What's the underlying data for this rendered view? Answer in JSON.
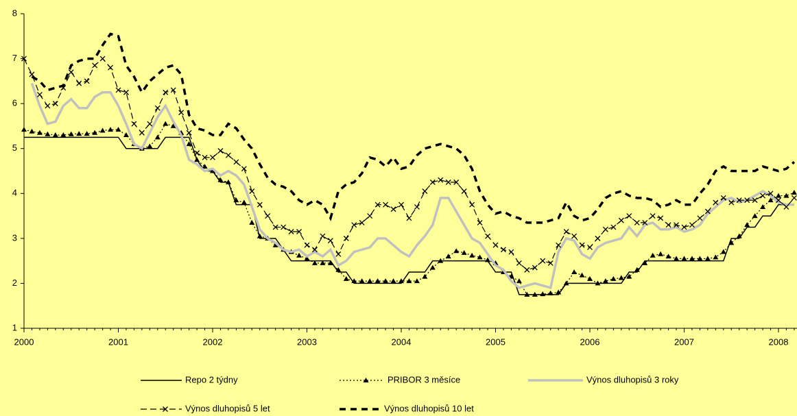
{
  "chart_data": {
    "type": "line",
    "categories": [
      "2000",
      null,
      null,
      null,
      null,
      null,
      null,
      null,
      null,
      null,
      null,
      null,
      "2001",
      null,
      null,
      null,
      null,
      null,
      null,
      null,
      null,
      null,
      null,
      null,
      "2002",
      null,
      null,
      null,
      null,
      null,
      null,
      null,
      null,
      null,
      null,
      null,
      "2003",
      null,
      null,
      null,
      null,
      null,
      null,
      null,
      null,
      null,
      null,
      null,
      "2004",
      null,
      null,
      null,
      null,
      null,
      null,
      null,
      null,
      null,
      null,
      null,
      "2005",
      null,
      null,
      null,
      null,
      null,
      null,
      null,
      null,
      null,
      null,
      null,
      "2006",
      null,
      null,
      null,
      null,
      null,
      null,
      null,
      null,
      null,
      null,
      null,
      "2007",
      null,
      null,
      null,
      null,
      null,
      null,
      null,
      null,
      null,
      null,
      null,
      "2008",
      null,
      null
    ],
    "ylim": [
      1,
      8
    ],
    "yticks": [
      1,
      2,
      3,
      4,
      5,
      6,
      7,
      8
    ],
    "series": [
      {
        "name": "Repo 2 týdny",
        "color": "#000000",
        "values": [
          5.25,
          5.25,
          5.25,
          5.25,
          5.25,
          5.25,
          5.25,
          5.25,
          5.25,
          5.25,
          5.25,
          5.25,
          5.25,
          5.0,
          5.0,
          5.0,
          5.0,
          5.0,
          5.25,
          5.25,
          5.25,
          5.25,
          4.75,
          4.5,
          4.5,
          4.25,
          4.25,
          3.75,
          3.75,
          3.75,
          3.0,
          3.0,
          3.0,
          2.75,
          2.5,
          2.5,
          2.5,
          2.5,
          2.5,
          2.5,
          2.25,
          2.25,
          2.0,
          2.0,
          2.0,
          2.0,
          2.0,
          2.0,
          2.0,
          2.25,
          2.25,
          2.25,
          2.5,
          2.5,
          2.5,
          2.5,
          2.5,
          2.5,
          2.5,
          2.5,
          2.25,
          2.25,
          2.25,
          1.75,
          1.75,
          1.75,
          1.75,
          1.75,
          1.75,
          2.0,
          2.0,
          2.0,
          2.0,
          2.0,
          2.0,
          2.0,
          2.0,
          2.25,
          2.25,
          2.5,
          2.5,
          2.5,
          2.5,
          2.5,
          2.5,
          2.5,
          2.5,
          2.5,
          2.5,
          2.5,
          3.0,
          3.0,
          3.25,
          3.25,
          3.5,
          3.5,
          3.75,
          3.75,
          3.75
        ]
      },
      {
        "name": "PRIBOR 3 měsíce",
        "color": "#000000",
        "values": [
          5.42,
          5.38,
          5.35,
          5.32,
          5.3,
          5.3,
          5.32,
          5.33,
          5.33,
          5.35,
          5.4,
          5.42,
          5.42,
          5.3,
          5.1,
          5.0,
          5.05,
          5.25,
          5.55,
          5.5,
          5.35,
          5.1,
          4.75,
          4.6,
          4.5,
          4.3,
          4.25,
          3.85,
          3.8,
          3.35,
          3.05,
          3.0,
          2.85,
          2.75,
          2.7,
          2.62,
          2.55,
          2.45,
          2.45,
          2.45,
          2.3,
          2.1,
          2.05,
          2.05,
          2.05,
          2.05,
          2.05,
          2.05,
          2.05,
          2.05,
          2.05,
          2.15,
          2.35,
          2.5,
          2.6,
          2.72,
          2.68,
          2.62,
          2.58,
          2.52,
          2.45,
          2.25,
          2.15,
          2.05,
          1.75,
          1.75,
          1.76,
          1.78,
          1.8,
          2.0,
          2.25,
          2.18,
          2.1,
          2.0,
          2.05,
          2.1,
          2.12,
          2.15,
          2.3,
          2.45,
          2.62,
          2.65,
          2.6,
          2.55,
          2.55,
          2.55,
          2.55,
          2.55,
          2.58,
          2.7,
          2.9,
          3.05,
          3.3,
          3.5,
          3.7,
          3.85,
          3.95,
          3.95,
          4.02
        ]
      },
      {
        "name": "Výnos dluhopisů 3 roky",
        "color": "#c0c0c0",
        "values": [
          null,
          6.45,
          5.95,
          5.55,
          5.6,
          5.95,
          6.1,
          5.9,
          5.9,
          6.15,
          6.25,
          6.25,
          5.95,
          5.55,
          5.1,
          5.0,
          5.35,
          5.7,
          5.95,
          5.6,
          5.3,
          4.75,
          4.65,
          4.5,
          4.55,
          4.4,
          4.5,
          4.4,
          4.2,
          3.7,
          3.2,
          3.0,
          2.9,
          2.75,
          2.7,
          2.75,
          2.6,
          2.7,
          2.6,
          2.75,
          2.4,
          2.5,
          2.7,
          2.75,
          2.8,
          3.0,
          3.0,
          2.85,
          2.7,
          2.6,
          2.85,
          3.05,
          3.3,
          3.9,
          3.9,
          3.6,
          3.3,
          3.0,
          2.9,
          2.65,
          2.4,
          2.3,
          2.05,
          1.9,
          1.95,
          2.0,
          1.95,
          1.9,
          2.7,
          3.0,
          2.95,
          2.65,
          2.55,
          2.8,
          2.9,
          2.95,
          3.0,
          3.25,
          3.05,
          3.3,
          3.35,
          3.2,
          3.2,
          3.25,
          3.15,
          3.2,
          3.3,
          3.55,
          3.7,
          3.85,
          3.9,
          3.8,
          3.85,
          3.95,
          4.05,
          3.95,
          3.8,
          3.75,
          3.75
        ]
      },
      {
        "name": "Výnos dluhopisů 5 let",
        "color": "#000000",
        "values": [
          7.0,
          6.65,
          6.2,
          5.95,
          6.0,
          6.35,
          6.7,
          6.45,
          6.5,
          6.85,
          7.0,
          6.8,
          6.3,
          6.25,
          5.55,
          5.35,
          5.55,
          5.9,
          6.25,
          6.3,
          5.8,
          5.35,
          4.9,
          4.8,
          4.8,
          4.95,
          4.85,
          4.7,
          4.55,
          4.05,
          3.75,
          3.5,
          3.25,
          3.25,
          3.15,
          3.15,
          2.85,
          2.75,
          3.05,
          2.95,
          2.65,
          3.0,
          3.3,
          3.35,
          3.5,
          3.75,
          3.75,
          3.65,
          3.75,
          3.45,
          3.7,
          4.05,
          4.25,
          4.3,
          4.25,
          4.25,
          4.05,
          3.75,
          3.35,
          3.05,
          2.85,
          2.75,
          2.7,
          2.45,
          2.3,
          2.35,
          2.5,
          2.45,
          2.85,
          3.15,
          3.05,
          2.85,
          2.8,
          3.0,
          3.2,
          3.25,
          3.4,
          3.5,
          3.35,
          3.35,
          3.5,
          3.45,
          3.3,
          3.3,
          3.25,
          3.3,
          3.45,
          3.6,
          3.8,
          3.9,
          3.8,
          3.85,
          3.85,
          3.85,
          3.95,
          4.0,
          3.85,
          3.7,
          3.9
        ]
      },
      {
        "name": "Výnos dluhopisů 10 let",
        "color": "#000000",
        "values": [
          null,
          6.6,
          6.5,
          6.3,
          6.35,
          6.4,
          6.85,
          6.95,
          7.0,
          7.0,
          7.3,
          7.55,
          7.5,
          6.85,
          6.6,
          6.25,
          6.5,
          6.65,
          6.8,
          6.85,
          6.65,
          5.75,
          5.45,
          5.4,
          5.3,
          5.3,
          5.55,
          5.45,
          5.2,
          5.0,
          4.65,
          4.35,
          4.2,
          4.15,
          4.05,
          3.85,
          3.75,
          3.85,
          3.75,
          3.45,
          4.05,
          4.2,
          4.25,
          4.45,
          4.8,
          4.75,
          4.6,
          4.8,
          4.55,
          4.6,
          4.85,
          5.0,
          5.05,
          5.1,
          5.05,
          5.0,
          4.85,
          4.55,
          4.05,
          3.75,
          3.55,
          3.6,
          3.5,
          3.45,
          3.35,
          3.35,
          3.35,
          3.4,
          3.45,
          3.8,
          3.5,
          3.4,
          3.45,
          3.65,
          3.9,
          4.0,
          4.05,
          3.95,
          3.9,
          3.9,
          3.85,
          3.7,
          3.75,
          3.85,
          3.75,
          3.75,
          4.0,
          4.2,
          4.5,
          4.6,
          4.5,
          4.5,
          4.5,
          4.5,
          4.6,
          4.55,
          4.5,
          4.55,
          4.7
        ]
      }
    ]
  }
}
